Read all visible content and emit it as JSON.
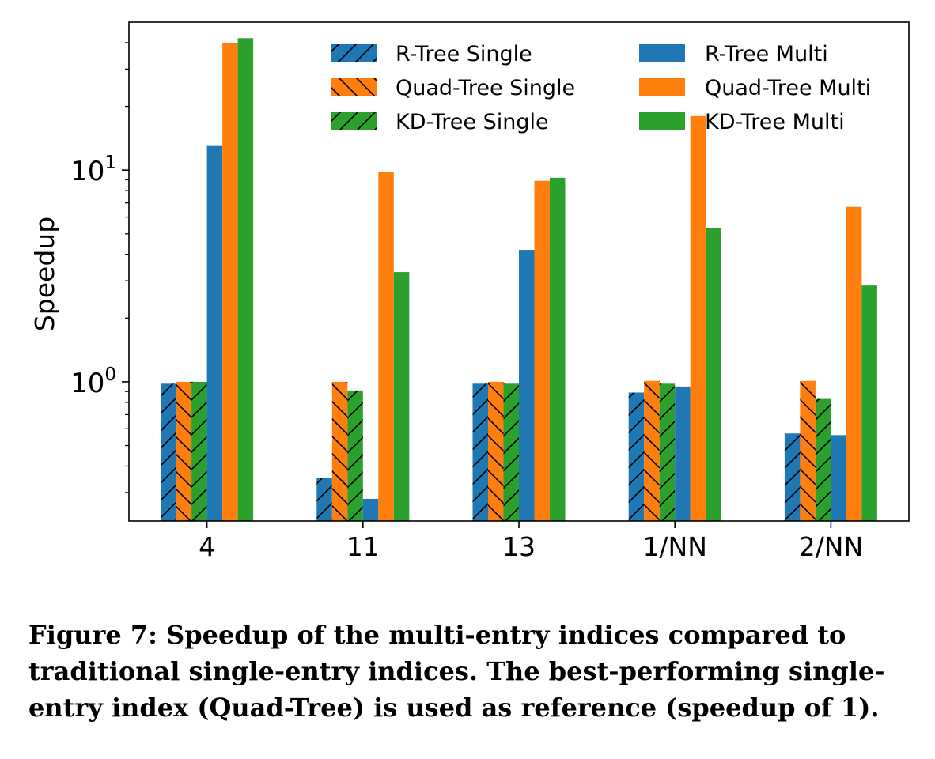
{
  "chart_data": {
    "type": "bar",
    "categories": [
      "4",
      "11",
      "13",
      "1/NN",
      "2/NN"
    ],
    "ylabel": "Speedup",
    "yscale": "log",
    "ylim": [
      0.22,
      50
    ],
    "ytick_labels": [
      {
        "value": 10,
        "base": "10",
        "exp": "1"
      },
      {
        "value": 1,
        "base": "10",
        "exp": "0"
      }
    ],
    "legend_position": "top-right",
    "series": [
      {
        "name": "R-Tree Single",
        "color": "#1f77b4",
        "hatch": "/",
        "values": [
          0.98,
          0.35,
          0.98,
          0.89,
          0.57
        ]
      },
      {
        "name": "Quad-Tree Single",
        "color": "#ff7f0e",
        "hatch": "\\",
        "values": [
          1.0,
          1.0,
          1.0,
          1.01,
          1.01
        ]
      },
      {
        "name": "KD-Tree Single",
        "color": "#2ca02c",
        "hatch": "/",
        "values": [
          1.0,
          0.91,
          0.98,
          0.98,
          0.83
        ]
      },
      {
        "name": "R-Tree Multi",
        "color": "#1f77b4",
        "hatch": "",
        "values": [
          13.0,
          0.28,
          4.2,
          0.95,
          0.56
        ]
      },
      {
        "name": "Quad-Tree Multi",
        "color": "#ff7f0e",
        "hatch": "",
        "values": [
          40.0,
          9.8,
          8.9,
          18.0,
          6.7
        ]
      },
      {
        "name": "KD-Tree Multi",
        "color": "#2ca02c",
        "hatch": "",
        "values": [
          42.0,
          3.3,
          9.2,
          5.3,
          2.85
        ]
      }
    ]
  },
  "caption": "Figure 7: Speedup of the multi-entry indices compared to traditional single-entry indices. The best-performing single-entry index (Quad-Tree) is used as reference (speedup of 1)."
}
